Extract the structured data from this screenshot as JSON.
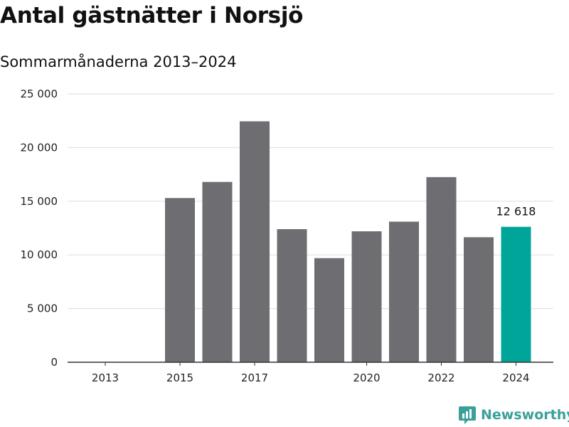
{
  "header": {
    "title": "Antal gästnätter i Norsjö",
    "subtitle": "Sommarmånaderna 2013–2024"
  },
  "brand": {
    "name": "Newsworthy",
    "icon": "newsworthy-logo-icon",
    "color": "#3aa09a"
  },
  "chart_data": {
    "type": "bar",
    "categories": [
      "2013",
      "2014",
      "2015",
      "2016",
      "2017",
      "2018",
      "2019",
      "2020",
      "2021",
      "2022",
      "2023",
      "2024"
    ],
    "values": [
      null,
      null,
      15300,
      16800,
      22450,
      12400,
      9700,
      12200,
      13100,
      17250,
      11650,
      12618
    ],
    "x_tick_labels": [
      "2013",
      "",
      "2015",
      "",
      "2017",
      "",
      "",
      "2020",
      "",
      "2022",
      "",
      "2024"
    ],
    "y_ticks": [
      0,
      5000,
      10000,
      15000,
      20000,
      25000
    ],
    "y_tick_labels": [
      "0",
      "5 000",
      "10 000",
      "15 000",
      "20 000",
      "25 000"
    ],
    "ylim": [
      0,
      25000
    ],
    "highlight_index": 11,
    "highlight_label": "12 618",
    "colors": {
      "bar": "#6e6d72",
      "highlight": "#00a59a",
      "grid": "#dddddd",
      "axis": "#333333"
    },
    "grid": true,
    "title": "Antal gästnätter i Norsjö",
    "xlabel": "",
    "ylabel": ""
  }
}
